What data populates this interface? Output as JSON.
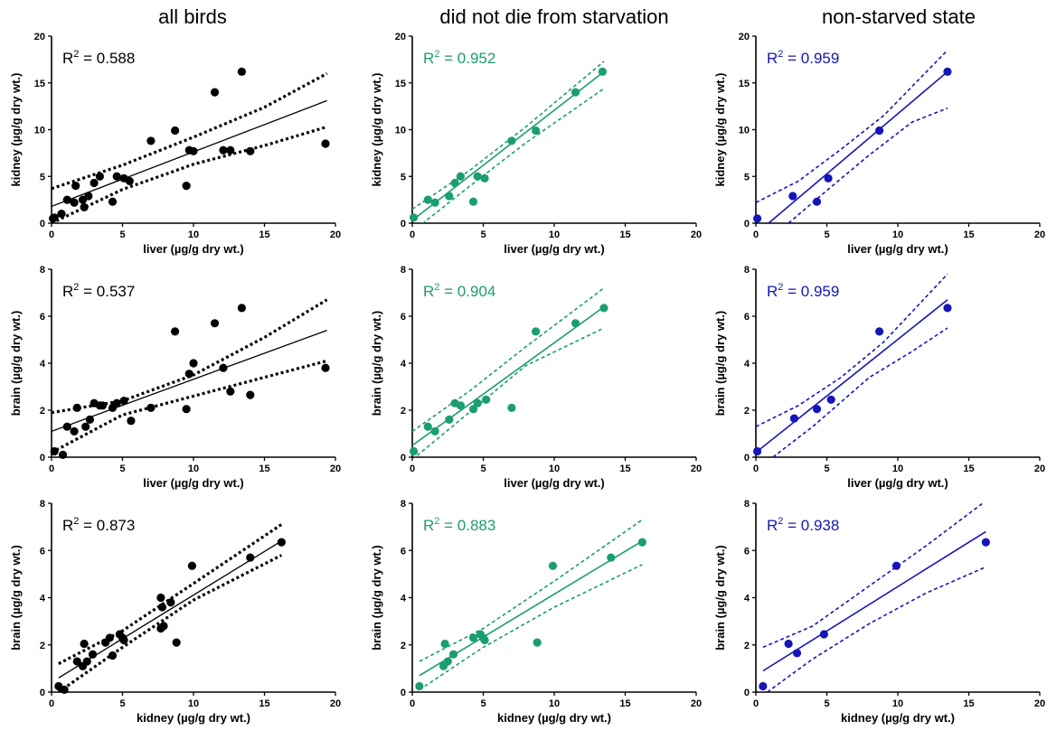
{
  "figure": {
    "column_titles": [
      "all birds",
      "did not die from starvation",
      "non-starved state"
    ],
    "colors": {
      "all": "#000000",
      "no_starvation": "#1a9e6e",
      "non_starved": "#1515b8"
    }
  },
  "chart_data": [
    {
      "type": "scatter",
      "row": 0,
      "col": 0,
      "color_key": "all",
      "xlabel": "liver (µg/g dry wt.)",
      "ylabel": "kidney (µg/g dry wt.)",
      "xlim": [
        0,
        20
      ],
      "ylim": [
        0,
        20
      ],
      "xticks": [
        0,
        5,
        10,
        15,
        20
      ],
      "yticks": [
        0,
        5,
        10,
        15,
        20
      ],
      "r2_prefix": "R",
      "r2_sup": "2",
      "r2_value": " = 0.588",
      "points": [
        [
          0.1,
          0.5
        ],
        [
          0.2,
          0.6
        ],
        [
          0.7,
          1.0
        ],
        [
          1.1,
          2.5
        ],
        [
          1.6,
          2.2
        ],
        [
          1.7,
          4.0
        ],
        [
          2.2,
          2.5
        ],
        [
          2.3,
          1.7
        ],
        [
          2.6,
          2.9
        ],
        [
          3.0,
          4.3
        ],
        [
          3.4,
          5.0
        ],
        [
          4.3,
          2.3
        ],
        [
          4.6,
          5.0
        ],
        [
          5.1,
          4.8
        ],
        [
          5.5,
          4.5
        ],
        [
          7.0,
          8.8
        ],
        [
          8.7,
          9.9
        ],
        [
          9.5,
          4.0
        ],
        [
          9.7,
          7.8
        ],
        [
          10.0,
          7.7
        ],
        [
          11.5,
          14.0
        ],
        [
          12.1,
          7.8
        ],
        [
          12.6,
          7.8
        ],
        [
          13.4,
          16.2
        ],
        [
          14.0,
          7.7
        ],
        [
          19.3,
          8.5
        ]
      ],
      "fit": [
        [
          0,
          1.8
        ],
        [
          19.4,
          13.1
        ]
      ],
      "ci_upper": [
        [
          0,
          3.7
        ],
        [
          5,
          6.2
        ],
        [
          10,
          9.2
        ],
        [
          15,
          12.4
        ],
        [
          19.4,
          16.0
        ]
      ],
      "ci_lower": [
        [
          0,
          0.0
        ],
        [
          5,
          3.6
        ],
        [
          10,
          6.3
        ],
        [
          15,
          8.3
        ],
        [
          19.4,
          10.3
        ]
      ]
    },
    {
      "type": "scatter",
      "row": 0,
      "col": 1,
      "color_key": "no_starvation",
      "xlabel": "liver (µg/g dry wt.)",
      "ylabel": "kidney (µg/g dry wt.)",
      "xlim": [
        0,
        20
      ],
      "ylim": [
        0,
        20
      ],
      "xticks": [
        0,
        5,
        10,
        15,
        20
      ],
      "yticks": [
        0,
        5,
        10,
        15,
        20
      ],
      "r2_prefix": "R",
      "r2_sup": "2",
      "r2_value": " = 0.952",
      "points": [
        [
          0.1,
          0.6
        ],
        [
          1.1,
          2.5
        ],
        [
          1.6,
          2.2
        ],
        [
          2.6,
          2.9
        ],
        [
          3.0,
          4.3
        ],
        [
          3.4,
          5.0
        ],
        [
          4.3,
          2.3
        ],
        [
          4.6,
          5.0
        ],
        [
          5.1,
          4.8
        ],
        [
          7.0,
          8.8
        ],
        [
          8.7,
          9.9
        ],
        [
          11.5,
          14.0
        ],
        [
          13.4,
          16.2
        ]
      ],
      "fit": [
        [
          0,
          0.3
        ],
        [
          13.5,
          16.2
        ]
      ],
      "ci_upper": [
        [
          0,
          1.5
        ],
        [
          4,
          5.6
        ],
        [
          8,
          10.3
        ],
        [
          13.5,
          17.3
        ]
      ],
      "ci_lower": [
        [
          0,
          -0.9
        ],
        [
          4,
          3.9
        ],
        [
          8,
          8.6
        ],
        [
          13.5,
          14.4
        ]
      ]
    },
    {
      "type": "scatter",
      "row": 0,
      "col": 2,
      "color_key": "non_starved",
      "xlabel": "liver (µg/g dry wt.)",
      "ylabel": "kidney (µg/g dry wt.)",
      "xlim": [
        0,
        20
      ],
      "ylim": [
        0,
        20
      ],
      "xticks": [
        0,
        5,
        10,
        15,
        20
      ],
      "yticks": [
        0,
        5,
        10,
        15,
        20
      ],
      "r2_prefix": "R",
      "r2_sup": "2",
      "r2_value": " = 0.959",
      "points": [
        [
          0.1,
          0.5
        ],
        [
          2.6,
          2.9
        ],
        [
          4.3,
          2.3
        ],
        [
          5.1,
          4.8
        ],
        [
          8.7,
          9.9
        ],
        [
          13.5,
          16.2
        ]
      ],
      "fit": [
        [
          0.9,
          0.0
        ],
        [
          13.5,
          16.2
        ]
      ],
      "ci_upper": [
        [
          0,
          2.2
        ],
        [
          3,
          4.5
        ],
        [
          6,
          7.9
        ],
        [
          9,
          11.5
        ],
        [
          13.5,
          18.5
        ]
      ],
      "ci_lower": [
        [
          2.3,
          0.0
        ],
        [
          5,
          3.5
        ],
        [
          8,
          7.3
        ],
        [
          11,
          10.8
        ],
        [
          13.5,
          12.3
        ]
      ]
    },
    {
      "type": "scatter",
      "row": 1,
      "col": 0,
      "color_key": "all",
      "xlabel": "liver (µg/g dry wt.)",
      "ylabel": "brain (µg/g dry wt.)",
      "xlim": [
        0,
        20
      ],
      "ylim": [
        0,
        8
      ],
      "xticks": [
        0,
        5,
        10,
        15,
        20
      ],
      "yticks": [
        0,
        2,
        4,
        6,
        8
      ],
      "r2_prefix": "R",
      "r2_sup": "2",
      "r2_value": " = 0.537",
      "points": [
        [
          0.2,
          0.25
        ],
        [
          0.8,
          0.1
        ],
        [
          1.1,
          1.3
        ],
        [
          1.6,
          1.1
        ],
        [
          1.8,
          2.1
        ],
        [
          2.4,
          1.3
        ],
        [
          2.7,
          1.6
        ],
        [
          3.0,
          2.3
        ],
        [
          3.4,
          2.2
        ],
        [
          3.6,
          2.2
        ],
        [
          4.3,
          2.1
        ],
        [
          4.6,
          2.3
        ],
        [
          5.1,
          2.4
        ],
        [
          5.6,
          1.55
        ],
        [
          7.0,
          2.1
        ],
        [
          8.7,
          5.35
        ],
        [
          9.5,
          2.05
        ],
        [
          9.7,
          3.55
        ],
        [
          10.0,
          4.0
        ],
        [
          11.5,
          5.7
        ],
        [
          12.1,
          3.8
        ],
        [
          12.6,
          2.8
        ],
        [
          13.4,
          6.35
        ],
        [
          14.0,
          2.65
        ],
        [
          19.3,
          3.8
        ]
      ],
      "fit": [
        [
          0,
          1.1
        ],
        [
          19.4,
          5.4
        ]
      ],
      "ci_upper": [
        [
          0,
          1.9
        ],
        [
          5,
          2.4
        ],
        [
          10,
          3.5
        ],
        [
          15,
          5.1
        ],
        [
          19.4,
          6.7
        ]
      ],
      "ci_lower": [
        [
          0,
          0.2
        ],
        [
          5,
          1.8
        ],
        [
          10,
          2.6
        ],
        [
          15,
          3.4
        ],
        [
          19.4,
          4.1
        ]
      ]
    },
    {
      "type": "scatter",
      "row": 1,
      "col": 1,
      "color_key": "no_starvation",
      "xlabel": "liver (µg/g dry wt.)",
      "ylabel": "brain (µg/g dry wt.)",
      "xlim": [
        0,
        20
      ],
      "ylim": [
        0,
        8
      ],
      "xticks": [
        0,
        5,
        10,
        15,
        20
      ],
      "yticks": [
        0,
        2,
        4,
        6,
        8
      ],
      "r2_prefix": "R",
      "r2_sup": "2",
      "r2_value": " = 0.904",
      "points": [
        [
          0.1,
          0.25
        ],
        [
          1.1,
          1.3
        ],
        [
          1.6,
          1.1
        ],
        [
          2.6,
          1.6
        ],
        [
          3.0,
          2.3
        ],
        [
          3.4,
          2.2
        ],
        [
          4.3,
          2.05
        ],
        [
          4.6,
          2.3
        ],
        [
          5.2,
          2.45
        ],
        [
          7.0,
          2.1
        ],
        [
          8.7,
          5.35
        ],
        [
          11.5,
          5.7
        ],
        [
          13.5,
          6.35
        ]
      ],
      "fit": [
        [
          0,
          0.5
        ],
        [
          13.5,
          6.4
        ]
      ],
      "ci_upper": [
        [
          0,
          1.1
        ],
        [
          4,
          2.8
        ],
        [
          8,
          4.7
        ],
        [
          13.5,
          7.2
        ]
      ],
      "ci_lower": [
        [
          0,
          -0.1
        ],
        [
          4,
          1.9
        ],
        [
          8,
          3.9
        ],
        [
          13.5,
          5.5
        ]
      ]
    },
    {
      "type": "scatter",
      "row": 1,
      "col": 2,
      "color_key": "non_starved",
      "xlabel": "liver (µg/g dry wt.)",
      "ylabel": "brain (µg/g dry wt.)",
      "xlim": [
        0,
        20
      ],
      "ylim": [
        0,
        8
      ],
      "xticks": [
        0,
        5,
        10,
        15,
        20
      ],
      "yticks": [
        0,
        2,
        4,
        6,
        8
      ],
      "r2_prefix": "R",
      "r2_sup": "2",
      "r2_value": " = 0.959",
      "points": [
        [
          0.1,
          0.25
        ],
        [
          2.7,
          1.65
        ],
        [
          4.3,
          2.05
        ],
        [
          5.3,
          2.45
        ],
        [
          8.7,
          5.35
        ],
        [
          13.5,
          6.35
        ]
      ],
      "fit": [
        [
          0,
          0.2
        ],
        [
          13.5,
          6.7
        ]
      ],
      "ci_upper": [
        [
          0,
          1.3
        ],
        [
          3,
          2.2
        ],
        [
          6,
          3.4
        ],
        [
          9,
          4.9
        ],
        [
          13.5,
          7.8
        ]
      ],
      "ci_lower": [
        [
          1.2,
          0.0
        ],
        [
          4,
          1.3
        ],
        [
          8,
          3.4
        ],
        [
          11,
          4.5
        ],
        [
          13.5,
          5.5
        ]
      ]
    },
    {
      "type": "scatter",
      "row": 2,
      "col": 0,
      "color_key": "all",
      "xlabel": "kidney (µg/g dry wt.)",
      "ylabel": "brain (µg/g dry wt.)",
      "xlim": [
        0,
        20
      ],
      "ylim": [
        0,
        8
      ],
      "xticks": [
        0,
        5,
        10,
        15,
        20
      ],
      "yticks": [
        0,
        2,
        4,
        6,
        8
      ],
      "r2_prefix": "R",
      "r2_sup": "2",
      "r2_value": " = 0.873",
      "points": [
        [
          0.5,
          0.25
        ],
        [
          0.9,
          0.1
        ],
        [
          1.8,
          1.3
        ],
        [
          2.2,
          1.1
        ],
        [
          2.3,
          2.05
        ],
        [
          2.5,
          1.3
        ],
        [
          2.9,
          1.6
        ],
        [
          3.8,
          2.1
        ],
        [
          4.1,
          2.3
        ],
        [
          4.3,
          1.55
        ],
        [
          4.8,
          2.45
        ],
        [
          5.0,
          2.3
        ],
        [
          5.1,
          2.2
        ],
        [
          7.7,
          2.7
        ],
        [
          7.7,
          4.0
        ],
        [
          7.8,
          3.6
        ],
        [
          7.9,
          2.8
        ],
        [
          8.4,
          3.8
        ],
        [
          8.8,
          2.1
        ],
        [
          9.9,
          5.35
        ],
        [
          14.0,
          5.7
        ],
        [
          16.2,
          6.35
        ]
      ],
      "fit": [
        [
          0.5,
          0.6
        ],
        [
          16.2,
          6.4
        ]
      ],
      "ci_upper": [
        [
          0.5,
          1.2
        ],
        [
          5,
          2.6
        ],
        [
          10,
          4.6
        ],
        [
          16.2,
          7.1
        ]
      ],
      "ci_lower": [
        [
          0.5,
          0.0
        ],
        [
          5,
          1.9
        ],
        [
          10,
          3.9
        ],
        [
          16.2,
          5.8
        ]
      ]
    },
    {
      "type": "scatter",
      "row": 2,
      "col": 1,
      "color_key": "no_starvation",
      "xlabel": "kidney (µg/g dry wt.)",
      "ylabel": "brain (µg/g dry wt.)",
      "xlim": [
        0,
        20
      ],
      "ylim": [
        0,
        8
      ],
      "xticks": [
        0,
        5,
        10,
        15,
        20
      ],
      "yticks": [
        0,
        2,
        4,
        6,
        8
      ],
      "r2_prefix": "R",
      "r2_sup": "2",
      "r2_value": " = 0.883",
      "points": [
        [
          0.5,
          0.25
        ],
        [
          2.2,
          1.1
        ],
        [
          2.3,
          2.05
        ],
        [
          2.5,
          1.3
        ],
        [
          2.9,
          1.6
        ],
        [
          4.3,
          2.3
        ],
        [
          4.8,
          2.45
        ],
        [
          5.0,
          2.3
        ],
        [
          5.1,
          2.2
        ],
        [
          8.8,
          2.1
        ],
        [
          9.9,
          5.35
        ],
        [
          14.0,
          5.7
        ],
        [
          16.2,
          6.35
        ]
      ],
      "fit": [
        [
          0.5,
          0.7
        ],
        [
          16.2,
          6.4
        ]
      ],
      "ci_upper": [
        [
          0.5,
          1.3
        ],
        [
          5,
          2.7
        ],
        [
          10,
          4.7
        ],
        [
          16.2,
          7.3
        ]
      ],
      "ci_lower": [
        [
          0.5,
          0.1
        ],
        [
          5,
          1.9
        ],
        [
          10,
          3.6
        ],
        [
          16.2,
          5.4
        ]
      ]
    },
    {
      "type": "scatter",
      "row": 2,
      "col": 2,
      "color_key": "non_starved",
      "xlabel": "kidney (µg/g dry wt.)",
      "ylabel": "brain (µg/g dry wt.)",
      "xlim": [
        0,
        20
      ],
      "ylim": [
        0,
        8
      ],
      "xticks": [
        0,
        5,
        10,
        15,
        20
      ],
      "yticks": [
        0,
        2,
        4,
        6,
        8
      ],
      "r2_prefix": "R",
      "r2_sup": "2",
      "r2_value": " = 0.938",
      "points": [
        [
          0.5,
          0.25
        ],
        [
          2.3,
          2.05
        ],
        [
          2.9,
          1.65
        ],
        [
          4.8,
          2.45
        ],
        [
          9.9,
          5.35
        ],
        [
          16.2,
          6.35
        ]
      ],
      "fit": [
        [
          0.5,
          0.9
        ],
        [
          16.2,
          6.8
        ]
      ],
      "ci_upper": [
        [
          0.5,
          1.9
        ],
        [
          4,
          2.8
        ],
        [
          8,
          4.5
        ],
        [
          12,
          6.2
        ],
        [
          16.2,
          8.1
        ]
      ],
      "ci_lower": [
        [
          0.8,
          0.0
        ],
        [
          4,
          1.4
        ],
        [
          8,
          2.9
        ],
        [
          12,
          4.2
        ],
        [
          16.2,
          5.3
        ]
      ]
    }
  ]
}
